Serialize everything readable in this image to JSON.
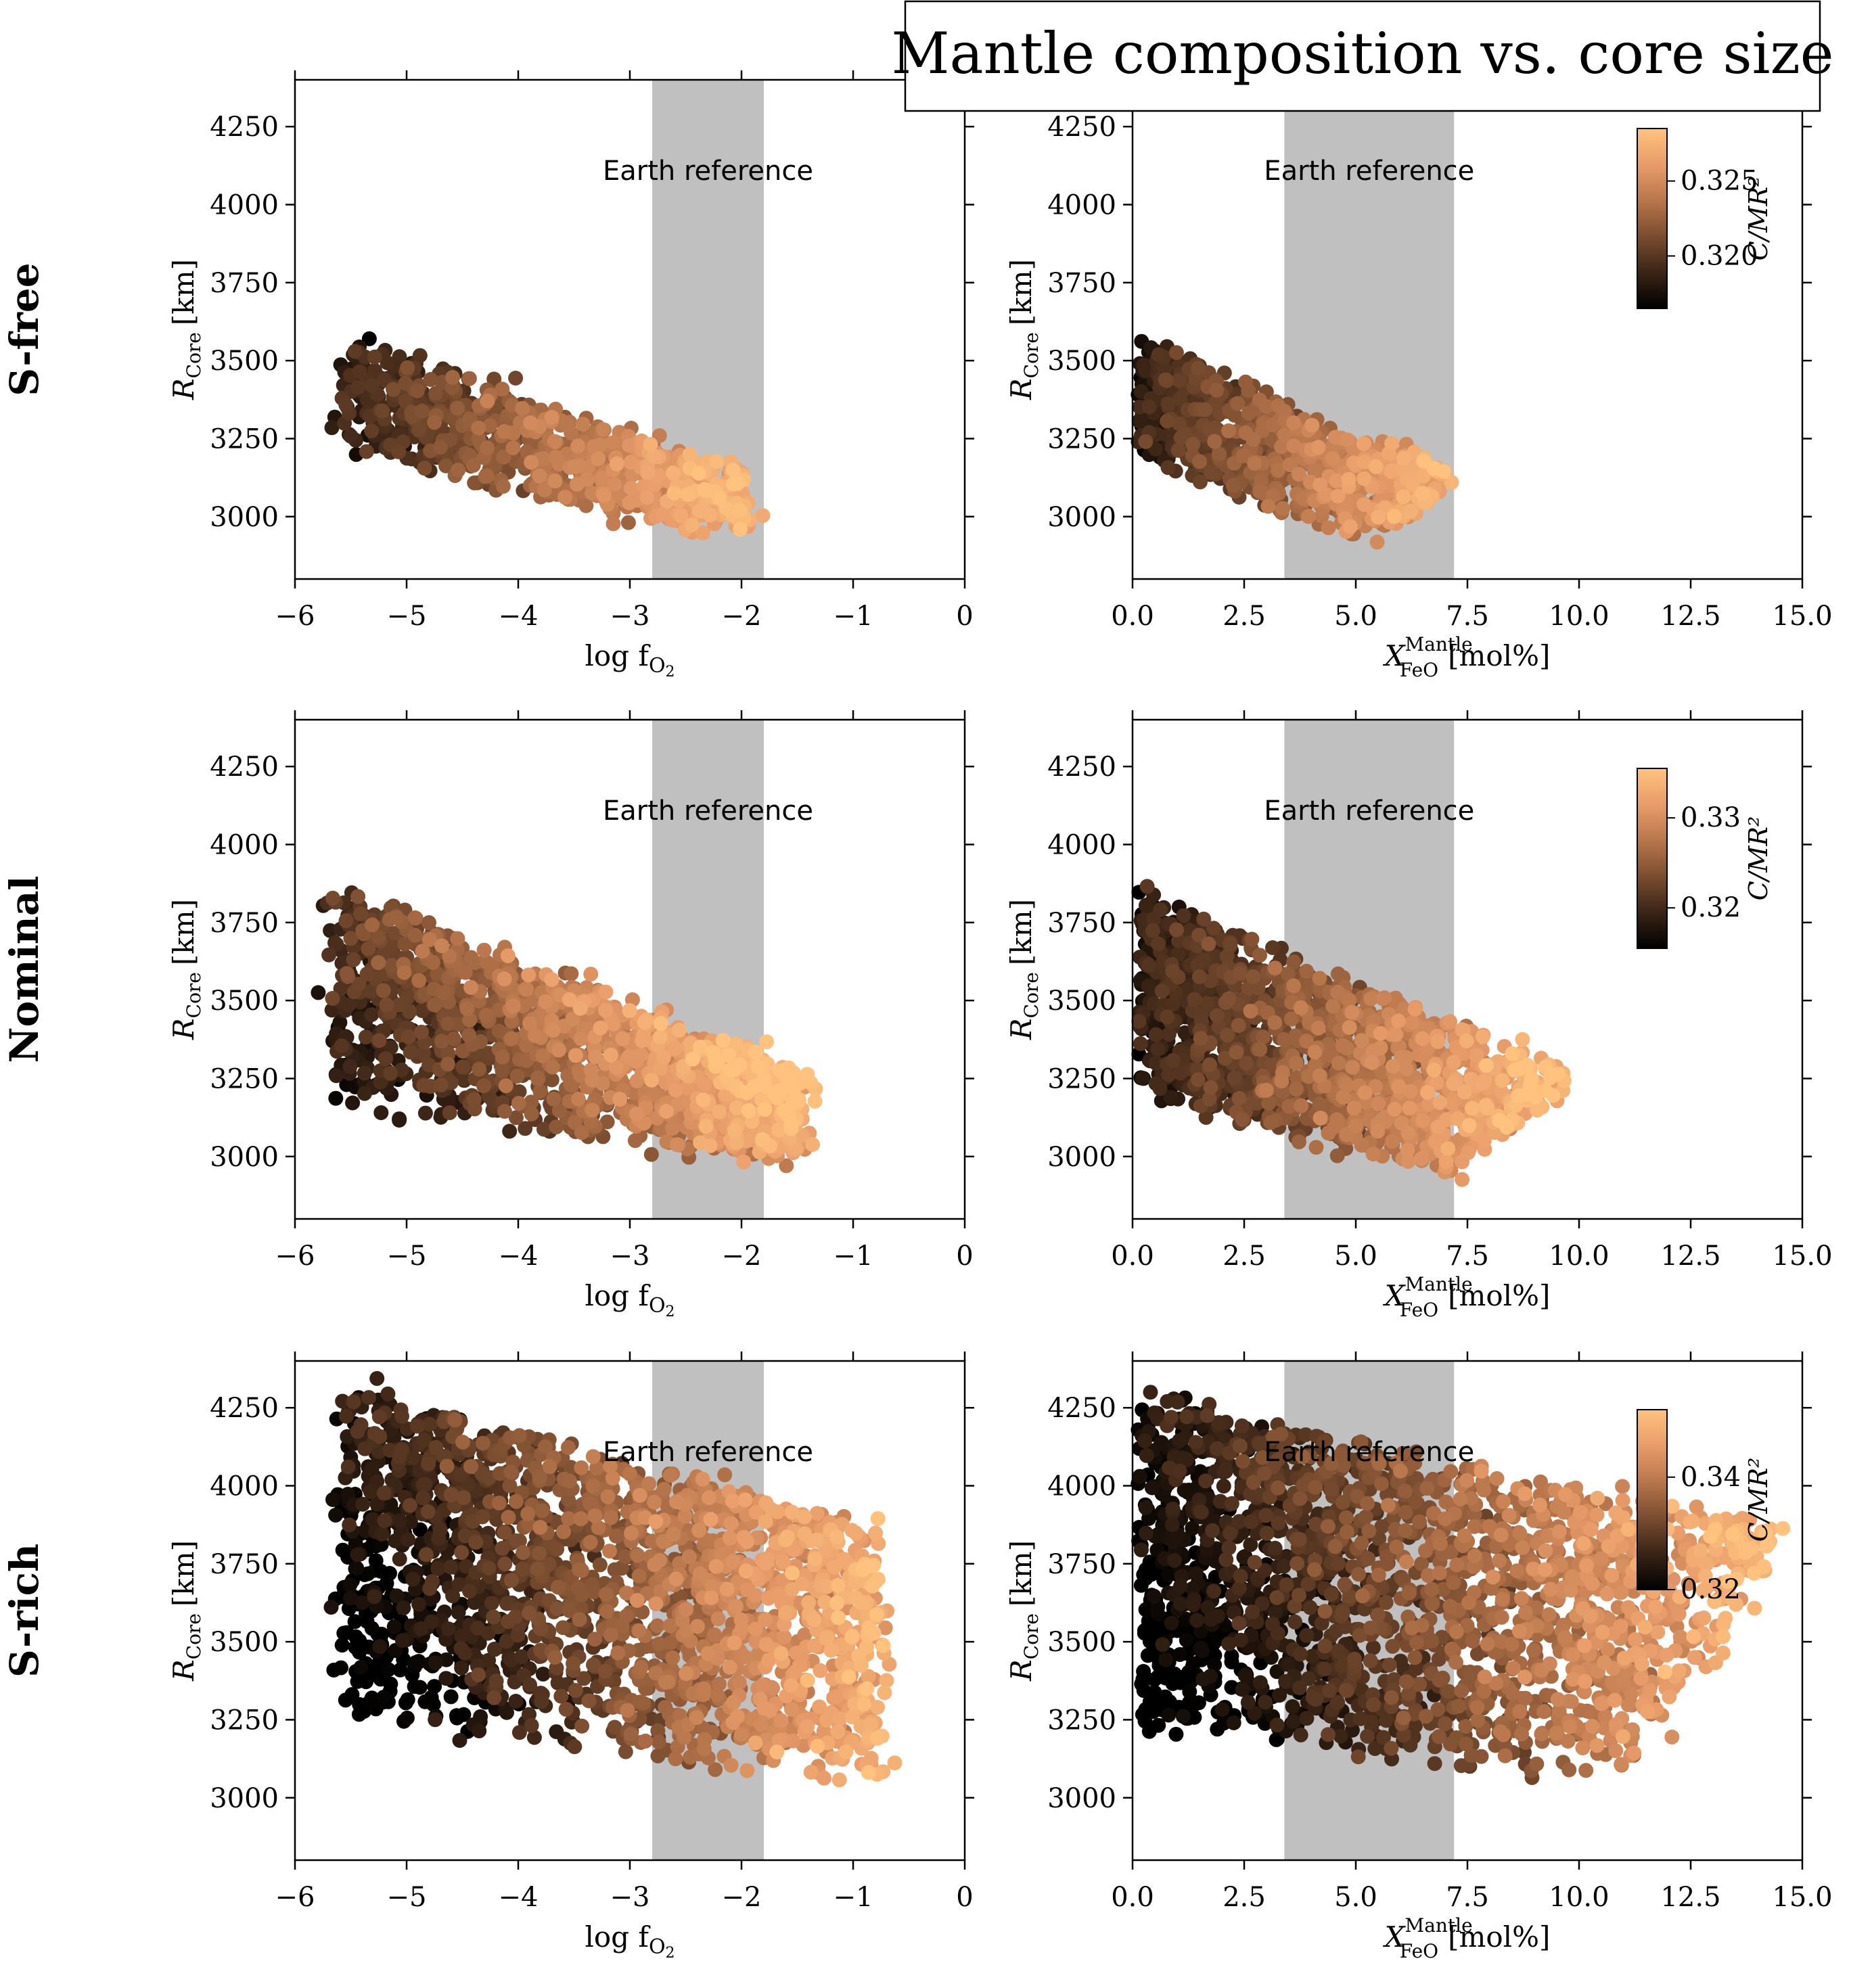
{
  "title": "Mantle  composition vs. core size",
  "colors": {
    "band": "#c0c0c0",
    "cmap": [
      "#000000",
      "#3a2416",
      "#7a4d30",
      "#b8764c",
      "#e89c6a",
      "#ffc37f"
    ]
  },
  "annotation": "Earth reference",
  "rows": [
    {
      "label": "S-free",
      "colorbar": {
        "label": "C/MR²",
        "ticks": [
          "0.320",
          "0.325"
        ],
        "tick_vals": [
          0.32,
          0.325
        ],
        "range": [
          0.3165,
          0.3285
        ]
      }
    },
    {
      "label": "Nominal",
      "colorbar": {
        "label": "C/MR²",
        "ticks": [
          "0.32",
          "0.33"
        ],
        "tick_vals": [
          0.32,
          0.33
        ],
        "range": [
          0.3155,
          0.3355
        ]
      }
    },
    {
      "label": "S-rich",
      "colorbar": {
        "label": "C/MR²",
        "ticks": [
          "0.32",
          "0.34"
        ],
        "tick_vals": [
          0.32,
          0.34
        ],
        "range": [
          0.32,
          0.352
        ]
      }
    }
  ],
  "axes": {
    "left": {
      "xlabel_main": "log f",
      "xlabel_sub": "O",
      "xlabel_subsub": "2",
      "xlim": [
        -6,
        0
      ],
      "xticks": [
        "−6",
        "−5",
        "−4",
        "−3",
        "−2",
        "−1",
        "0"
      ],
      "xtick_vals": [
        -6,
        -5,
        -4,
        -3,
        -2,
        -1,
        0
      ],
      "band": [
        -2.8,
        -1.8
      ]
    },
    "right": {
      "xlabel_main": "X",
      "xlabel_sup": "Mantle",
      "xlabel_sub": "FeO",
      "xlabel_unit": "[mol%]",
      "xlim": [
        0,
        15
      ],
      "xticks": [
        "0.0",
        "2.5",
        "5.0",
        "7.5",
        "10.0",
        "12.5",
        "15.0"
      ],
      "xtick_vals": [
        0,
        2.5,
        5,
        7.5,
        10,
        12.5,
        15
      ],
      "band": [
        3.4,
        7.2
      ]
    },
    "y": {
      "label_main": "R",
      "label_sub": "Core",
      "label_unit": "[km]",
      "ylim": [
        2800,
        4400
      ],
      "yticks": [
        "3000",
        "3250",
        "3500",
        "3750",
        "4000",
        "4250"
      ],
      "ytick_vals": [
        3000,
        3250,
        3500,
        3750,
        4000,
        4250
      ]
    }
  },
  "chart_data": [
    {
      "type": "scatter",
      "panel": "S-free / log fO2",
      "x_range": [
        -5.6,
        -1.5
      ],
      "y_range": [
        2940,
        3610
      ],
      "trend": "R_core decreases from ~3300-3600 km at log fO2 -5.5 to ~2950-3100 km at -2.0; C/MR² increases with log fO2"
    },
    {
      "type": "scatter",
      "panel": "S-free / X_FeO",
      "x_range": [
        0.0,
        7.2
      ],
      "y_range": [
        2940,
        3610
      ],
      "trend": "R_core decreases from ~3600 km at 0 mol% to ~2950 km at 7 mol%; C/MR² increases with X_FeO"
    },
    {
      "type": "scatter",
      "panel": "Nominal / log fO2",
      "x_range": [
        -5.7,
        -1.4
      ],
      "y_range": [
        2970,
        3890
      ],
      "trend": "R_core decreases from ~3200-3890 km at -5.5 to ~2970-3270 km at -1.5"
    },
    {
      "type": "scatter",
      "panel": "Nominal / X_FeO",
      "x_range": [
        0.0,
        9.7
      ],
      "y_range": [
        2970,
        3890
      ],
      "trend": "R_core decreases from ~3890 km at 0 mol% to ~3000-3100 km at 9.7 mol%"
    },
    {
      "type": "scatter",
      "panel": "S-rich / log fO2",
      "x_range": [
        -5.6,
        -0.7
      ],
      "y_range": [
        3010,
        4350
      ],
      "trend": "R_core decreases from ~3300-4350 km at -5.5 to ~3050-3700 km at -0.8"
    },
    {
      "type": "scatter",
      "panel": "S-rich / X_FeO",
      "x_range": [
        0.0,
        14.6
      ],
      "y_range": [
        3010,
        4350
      ],
      "trend": "R_core decreases from ~4350 km at 0 mol% to ~3100-3450 km at 14.5 mol%"
    }
  ]
}
